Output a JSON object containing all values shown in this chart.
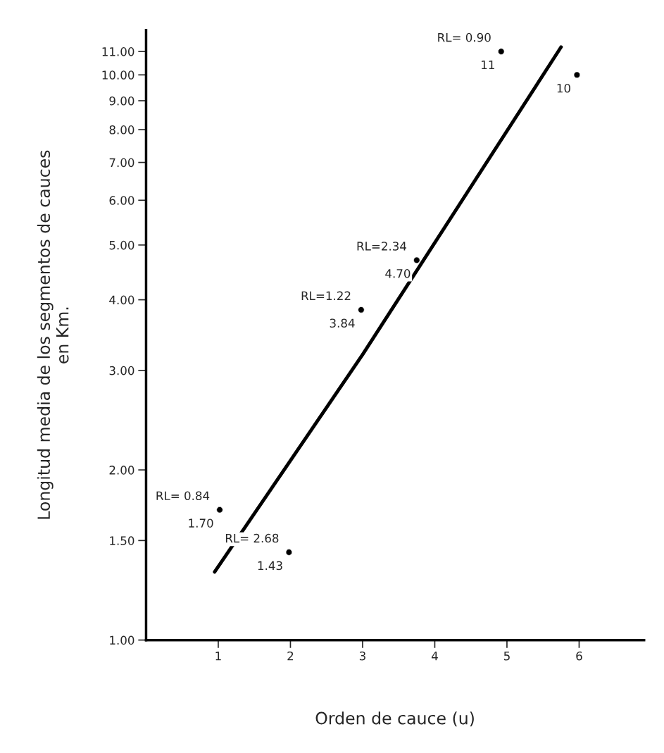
{
  "chart_data": {
    "type": "scatter",
    "xlabel": "Orden de cauce (u)",
    "ylabel": "Longitud media de los segmentos de cauces\nen Km.",
    "log": "y",
    "xlim": [
      0,
      6.9
    ],
    "xticks": [
      1,
      2,
      3,
      4,
      5,
      6
    ],
    "ylim": [
      1.0,
      12
    ],
    "yticks": [
      {
        "value": 1,
        "label": "1.00"
      },
      {
        "value": 1.5,
        "label": "1.50"
      },
      {
        "value": 2,
        "label": "2.00"
      },
      {
        "value": 3,
        "label": "3.00"
      },
      {
        "value": 4,
        "label": "4.00"
      },
      {
        "value": 5,
        "label": "5.00"
      },
      {
        "value": 6,
        "label": "6.00"
      },
      {
        "value": 7,
        "label": "7.00"
      },
      {
        "value": 8,
        "label": "8.00"
      },
      {
        "value": 9,
        "label": "9.00"
      },
      {
        "value": 10,
        "label": "10.00"
      },
      {
        "value": 11,
        "label": "11.00"
      }
    ],
    "grid": false,
    "series": [
      {
        "marker": "circle",
        "color": "#000000",
        "x": [
          1.02,
          1.98,
          2.98,
          3.75,
          4.92,
          5.97
        ],
        "values": [
          1.7,
          1.43,
          3.84,
          4.7,
          11,
          10
        ],
        "value_labels": [
          "1.70",
          "1.43",
          "3.84",
          "4.70",
          "11",
          "10"
        ]
      },
      {
        "type": "line",
        "color": "#000000",
        "x": [
          0.95,
          3,
          5.75
        ],
        "values": [
          1.32,
          3.2,
          11.2
        ],
        "line_style": "solid"
      }
    ],
    "annotations": [
      {
        "text": "RL= 0.84",
        "x": 1.02,
        "y": 1.7
      },
      {
        "text": "RL= 2.68",
        "x": 1.98,
        "y": 1.43
      },
      {
        "text": "RL=1.22",
        "x": 2.98,
        "y": 3.84
      },
      {
        "text": "RL=2.34",
        "x": 3.75,
        "y": 4.7
      },
      {
        "text": "RL= 0.90",
        "x": 4.92,
        "y": 11
      }
    ]
  }
}
